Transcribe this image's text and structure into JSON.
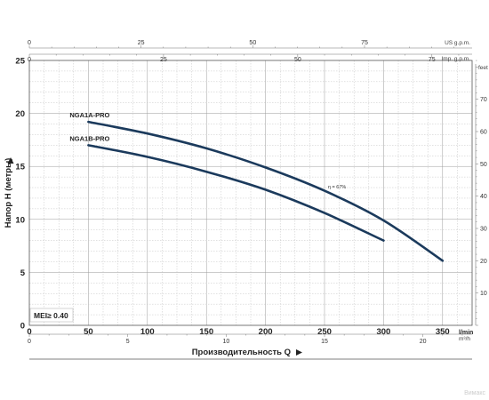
{
  "chart_data": {
    "type": "line",
    "xlabel": "Производительность Q",
    "ylabel": "Напор H (метры)",
    "x_unit": "l/min",
    "xlim": [
      0,
      375
    ],
    "ylim": [
      0,
      25
    ],
    "x_ticks": [
      "0",
      "50",
      "100",
      "150",
      "200",
      "250",
      "300",
      "350"
    ],
    "y_ticks": [
      "0",
      "5",
      "10",
      "15",
      "20",
      "25"
    ],
    "grid": true,
    "secondary_axes": {
      "us_gpm": {
        "unit": "US g.p.m.",
        "ticks": [
          "0",
          "25",
          "50",
          "75"
        ]
      },
      "imp_gpm": {
        "unit": "Imp. g.p.m.",
        "ticks": [
          "0",
          "25",
          "50",
          "75"
        ]
      },
      "m3h": {
        "unit": "m³/h",
        "ticks": [
          "0",
          "5",
          "10",
          "15",
          "20"
        ]
      },
      "feet": {
        "unit": "feet",
        "ticks": [
          "10",
          "20",
          "30",
          "40",
          "50",
          "60",
          "70"
        ]
      }
    },
    "series": [
      {
        "name": "NGA1A-PRO",
        "x": [
          50,
          100,
          150,
          200,
          250,
          300,
          350
        ],
        "y": [
          19.2,
          18.1,
          16.7,
          14.9,
          12.7,
          9.9,
          6.1
        ]
      },
      {
        "name": "NGA1B-PRO",
        "x": [
          50,
          100,
          150,
          200,
          250,
          300
        ],
        "y": [
          17.0,
          15.9,
          14.5,
          12.8,
          10.6,
          8.0
        ]
      }
    ],
    "annotations": [
      {
        "text": "η = 67%",
        "x": 253,
        "y": 12.9
      }
    ],
    "mei_label": "MEI≥ 0.40",
    "watermark": "Вимакс"
  }
}
